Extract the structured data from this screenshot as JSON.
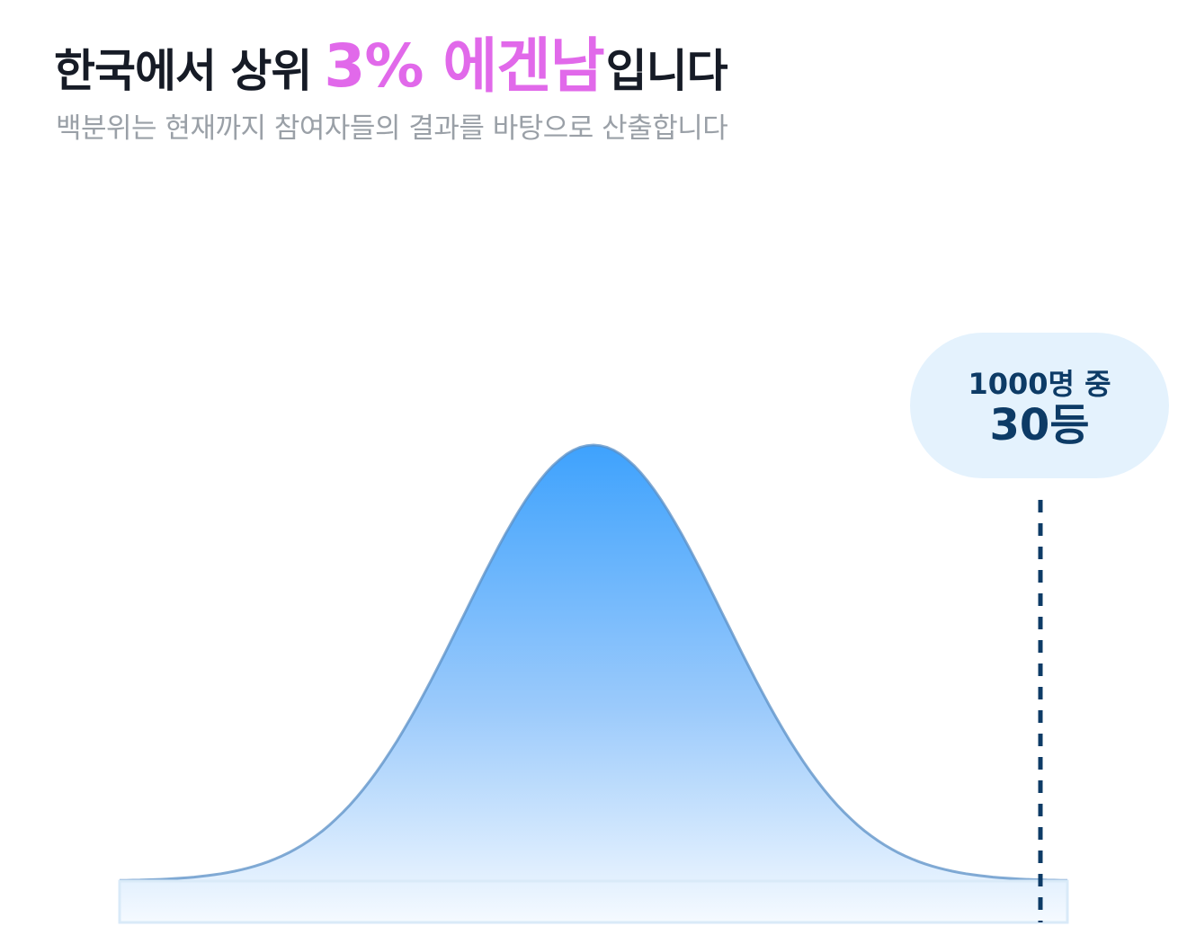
{
  "header": {
    "title_prefix": "한국에서 상위",
    "title_highlight": "3% 에겐남",
    "title_suffix": "입니다",
    "subtitle": "백분위는 현재까지 참여자들의 결과를 바탕으로 산출합니다"
  },
  "rank": {
    "total_label": "1000명 중",
    "place_label": "30등",
    "rank": 30,
    "total": 1000
  },
  "colors": {
    "highlight": "#e169ea",
    "title": "#161b26",
    "subtitle": "#9aa0a7",
    "badge_bg": "#e4f2fd",
    "badge_text": "#0d3b66",
    "curve_top": "#3ea2fd",
    "curve_bottom": "#ffffff",
    "curve_stroke": "#5a8fc6",
    "marker_line": "#0d3b66"
  },
  "chart_data": {
    "type": "area",
    "description_label": "",
    "distribution": "normal",
    "percentile_marker": 97
  }
}
